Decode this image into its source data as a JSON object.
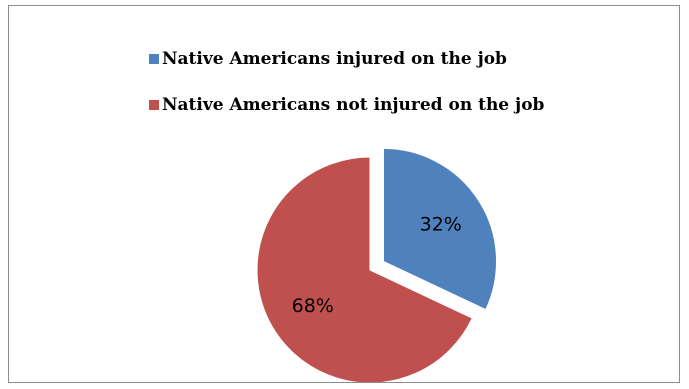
{
  "colors": {
    "injured": "#4f81bd",
    "not_injured": "#c0504d",
    "border": "#8c8c8c"
  },
  "chart_data": {
    "type": "pie",
    "title": "",
    "legend_position": "top",
    "series": [
      {
        "name": "Native Americans injured on the job",
        "value": 32,
        "label": "32%",
        "color": "#4f81bd",
        "exploded": true
      },
      {
        "name": "Native Americans not injured on the job",
        "value": 68,
        "label": "68%",
        "color": "#c0504d",
        "exploded": false
      }
    ]
  }
}
